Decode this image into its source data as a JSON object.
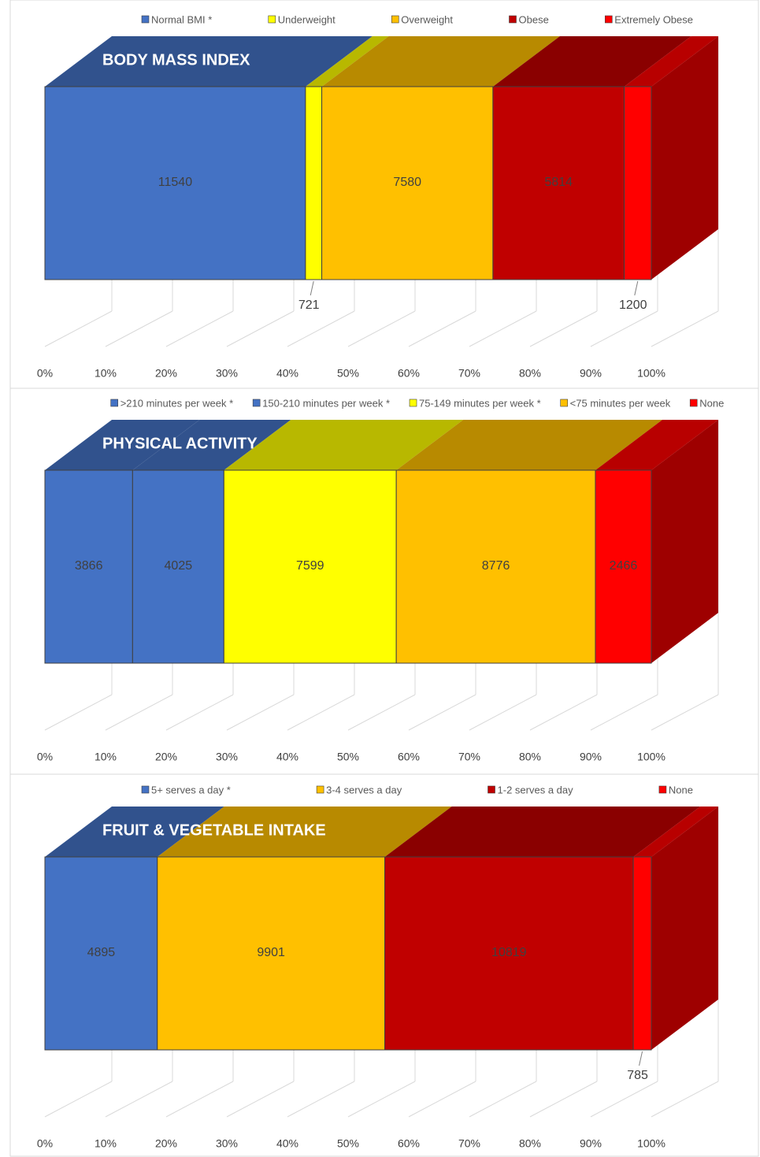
{
  "chart_data": [
    {
      "type": "bar3d_stacked_100",
      "title": "BODY MASS INDEX",
      "series": [
        {
          "name": "Normal BMI *",
          "color": "#4472c4",
          "values": [
            11540
          ]
        },
        {
          "name": "Underweight",
          "color": "#ffff00",
          "values": [
            721
          ]
        },
        {
          "name": "Overweight",
          "color": "#ffc000",
          "values": [
            7580
          ]
        },
        {
          "name": "Obese",
          "color": "#c00000",
          "values": [
            5814
          ]
        },
        {
          "name": "Extremely Obese",
          "color": "#ff0000",
          "values": [
            1200
          ]
        }
      ],
      "xlim": [
        0,
        100
      ],
      "xticks": [
        {
          "value": 0,
          "label": "0%"
        },
        {
          "value": 10,
          "label": "10%"
        },
        {
          "value": 20,
          "label": "20%"
        },
        {
          "value": 30,
          "label": "30%"
        },
        {
          "value": 40,
          "label": "40%"
        },
        {
          "value": 50,
          "label": "50%"
        },
        {
          "value": 60,
          "label": "60%"
        },
        {
          "value": 70,
          "label": "70%"
        },
        {
          "value": 80,
          "label": "80%"
        },
        {
          "value": 90,
          "label": "90%"
        },
        {
          "value": 100,
          "label": "100%"
        }
      ],
      "grid": true,
      "legend": "top"
    },
    {
      "type": "bar3d_stacked_100",
      "title": "PHYSICAL ACTIVITY",
      "series": [
        {
          "name": ">210 minutes per week *",
          "color": "#4472c4",
          "values": [
            3866
          ]
        },
        {
          "name": "150-210 minutes per week *",
          "color": "#4472c4",
          "values": [
            4025
          ]
        },
        {
          "name": "75-149 minutes per week *",
          "color": "#ffff00",
          "values": [
            7599
          ]
        },
        {
          "name": "<75 minutes per week",
          "color": "#ffc000",
          "values": [
            8776
          ]
        },
        {
          "name": "None",
          "color": "#ff0000",
          "values": [
            2466
          ]
        }
      ],
      "xlim": [
        0,
        100
      ],
      "xticks": [
        {
          "value": 0,
          "label": "0%"
        },
        {
          "value": 10,
          "label": "10%"
        },
        {
          "value": 20,
          "label": "20%"
        },
        {
          "value": 30,
          "label": "30%"
        },
        {
          "value": 40,
          "label": "40%"
        },
        {
          "value": 50,
          "label": "50%"
        },
        {
          "value": 60,
          "label": "60%"
        },
        {
          "value": 70,
          "label": "70%"
        },
        {
          "value": 80,
          "label": "80%"
        },
        {
          "value": 90,
          "label": "90%"
        },
        {
          "value": 100,
          "label": "100%"
        }
      ],
      "grid": true,
      "legend": "top"
    },
    {
      "type": "bar3d_stacked_100",
      "title": "FRUIT & VEGETABLE INTAKE",
      "series": [
        {
          "name": "5+ serves a day *",
          "color": "#4472c4",
          "values": [
            4895
          ]
        },
        {
          "name": "3-4 serves a day",
          "color": "#ffc000",
          "values": [
            9901
          ]
        },
        {
          "name": "1-2 serves a day",
          "color": "#c00000",
          "values": [
            10819
          ]
        },
        {
          "name": "None",
          "color": "#ff0000",
          "values": [
            785
          ]
        }
      ],
      "xlim": [
        0,
        100
      ],
      "xticks": [
        {
          "value": 0,
          "label": "0%"
        },
        {
          "value": 10,
          "label": "10%"
        },
        {
          "value": 20,
          "label": "20%"
        },
        {
          "value": 30,
          "label": "30%"
        },
        {
          "value": 40,
          "label": "40%"
        },
        {
          "value": 50,
          "label": "50%"
        },
        {
          "value": 60,
          "label": "60%"
        },
        {
          "value": 70,
          "label": "70%"
        },
        {
          "value": 80,
          "label": "80%"
        },
        {
          "value": 90,
          "label": "90%"
        },
        {
          "value": 100,
          "label": "100%"
        }
      ],
      "grid": true,
      "legend": "top"
    }
  ]
}
